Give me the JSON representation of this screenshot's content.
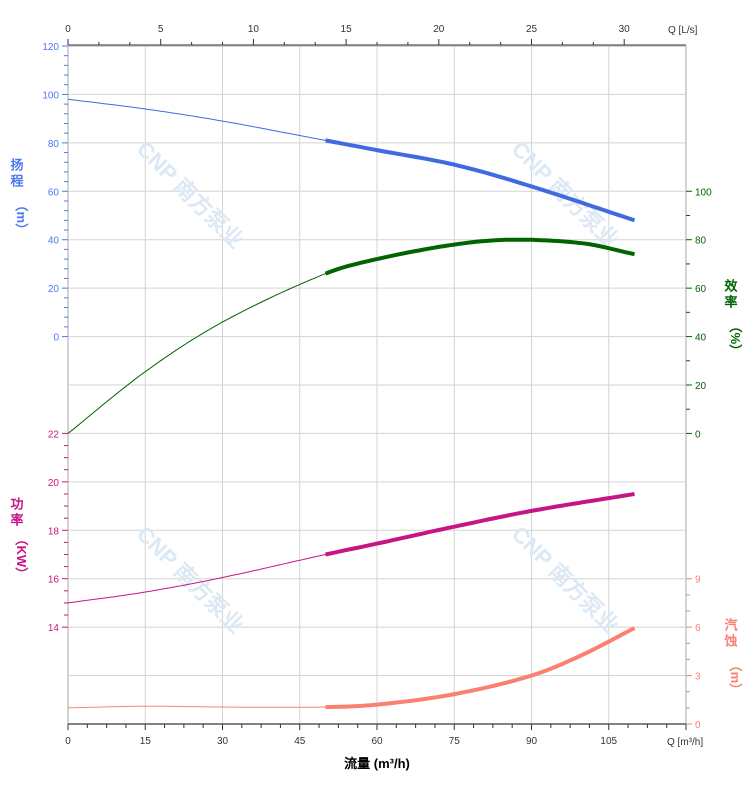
{
  "chart_data": {
    "type": "line",
    "title": "",
    "watermark": "CNP 南方泵业",
    "x_axis": {
      "label": "流量 (m³/h)",
      "unit_label": "Q [m³/h]",
      "range": [
        0,
        120
      ],
      "ticks": [
        0,
        15,
        30,
        45,
        60,
        75,
        90,
        105
      ]
    },
    "x2_axis": {
      "unit_label": "Q [L/s]",
      "range": [
        0,
        33.333
      ],
      "ticks": [
        0,
        5,
        10,
        15,
        20,
        25,
        30
      ],
      "color": "#cc8800"
    },
    "grid": true,
    "operating_range": [
      50,
      110
    ],
    "axes": {
      "head": {
        "label_chars": [
          "扬",
          "程",
          "（m）"
        ],
        "range": [
          0,
          120
        ],
        "ticks": [
          0,
          20,
          40,
          60,
          80,
          100,
          120
        ],
        "color": "#4a7af0",
        "side": "left"
      },
      "efficiency": {
        "label_chars": [
          "效",
          "率",
          "（%）"
        ],
        "range": [
          0,
          100
        ],
        "ticks": [
          0,
          20,
          40,
          60,
          80,
          100
        ],
        "color": "#006400",
        "side": "right"
      },
      "power": {
        "label_chars": [
          "功",
          "率",
          "（KW）"
        ],
        "range": [
          14,
          22
        ],
        "ticks": [
          14,
          16,
          18,
          20,
          22
        ],
        "color": "#c71585",
        "side": "left"
      },
      "npsh": {
        "label_chars": [
          "汽",
          "蚀",
          "（m）"
        ],
        "range": [
          0,
          9
        ],
        "ticks": [
          0,
          3,
          6,
          9
        ],
        "color": "#fa8072",
        "side": "right"
      }
    },
    "series": [
      {
        "key": "head",
        "color": "#4169e1",
        "x": [
          0,
          15,
          30,
          50,
          60,
          75,
          90,
          110
        ],
        "y": [
          98,
          94,
          89,
          81,
          77,
          71,
          62,
          48
        ]
      },
      {
        "key": "efficiency",
        "color": "#006400",
        "x": [
          0,
          15,
          30,
          50,
          60,
          75,
          86,
          100,
          110
        ],
        "y": [
          0,
          25.5,
          46,
          66,
          72,
          78,
          80,
          78.5,
          74
        ]
      },
      {
        "key": "power",
        "color": "#c71585",
        "x": [
          0,
          15,
          30,
          50,
          60,
          75,
          90,
          110
        ],
        "y": [
          15,
          15.45,
          16.05,
          17,
          17.45,
          18.15,
          18.8,
          19.5
        ]
      },
      {
        "key": "npsh",
        "color": "#fa8072",
        "x": [
          0,
          15,
          30,
          50,
          60,
          75,
          90,
          100,
          110
        ],
        "y": [
          1.0,
          1.1,
          1.05,
          1.05,
          1.2,
          1.85,
          3.0,
          4.3,
          5.95
        ]
      }
    ]
  }
}
